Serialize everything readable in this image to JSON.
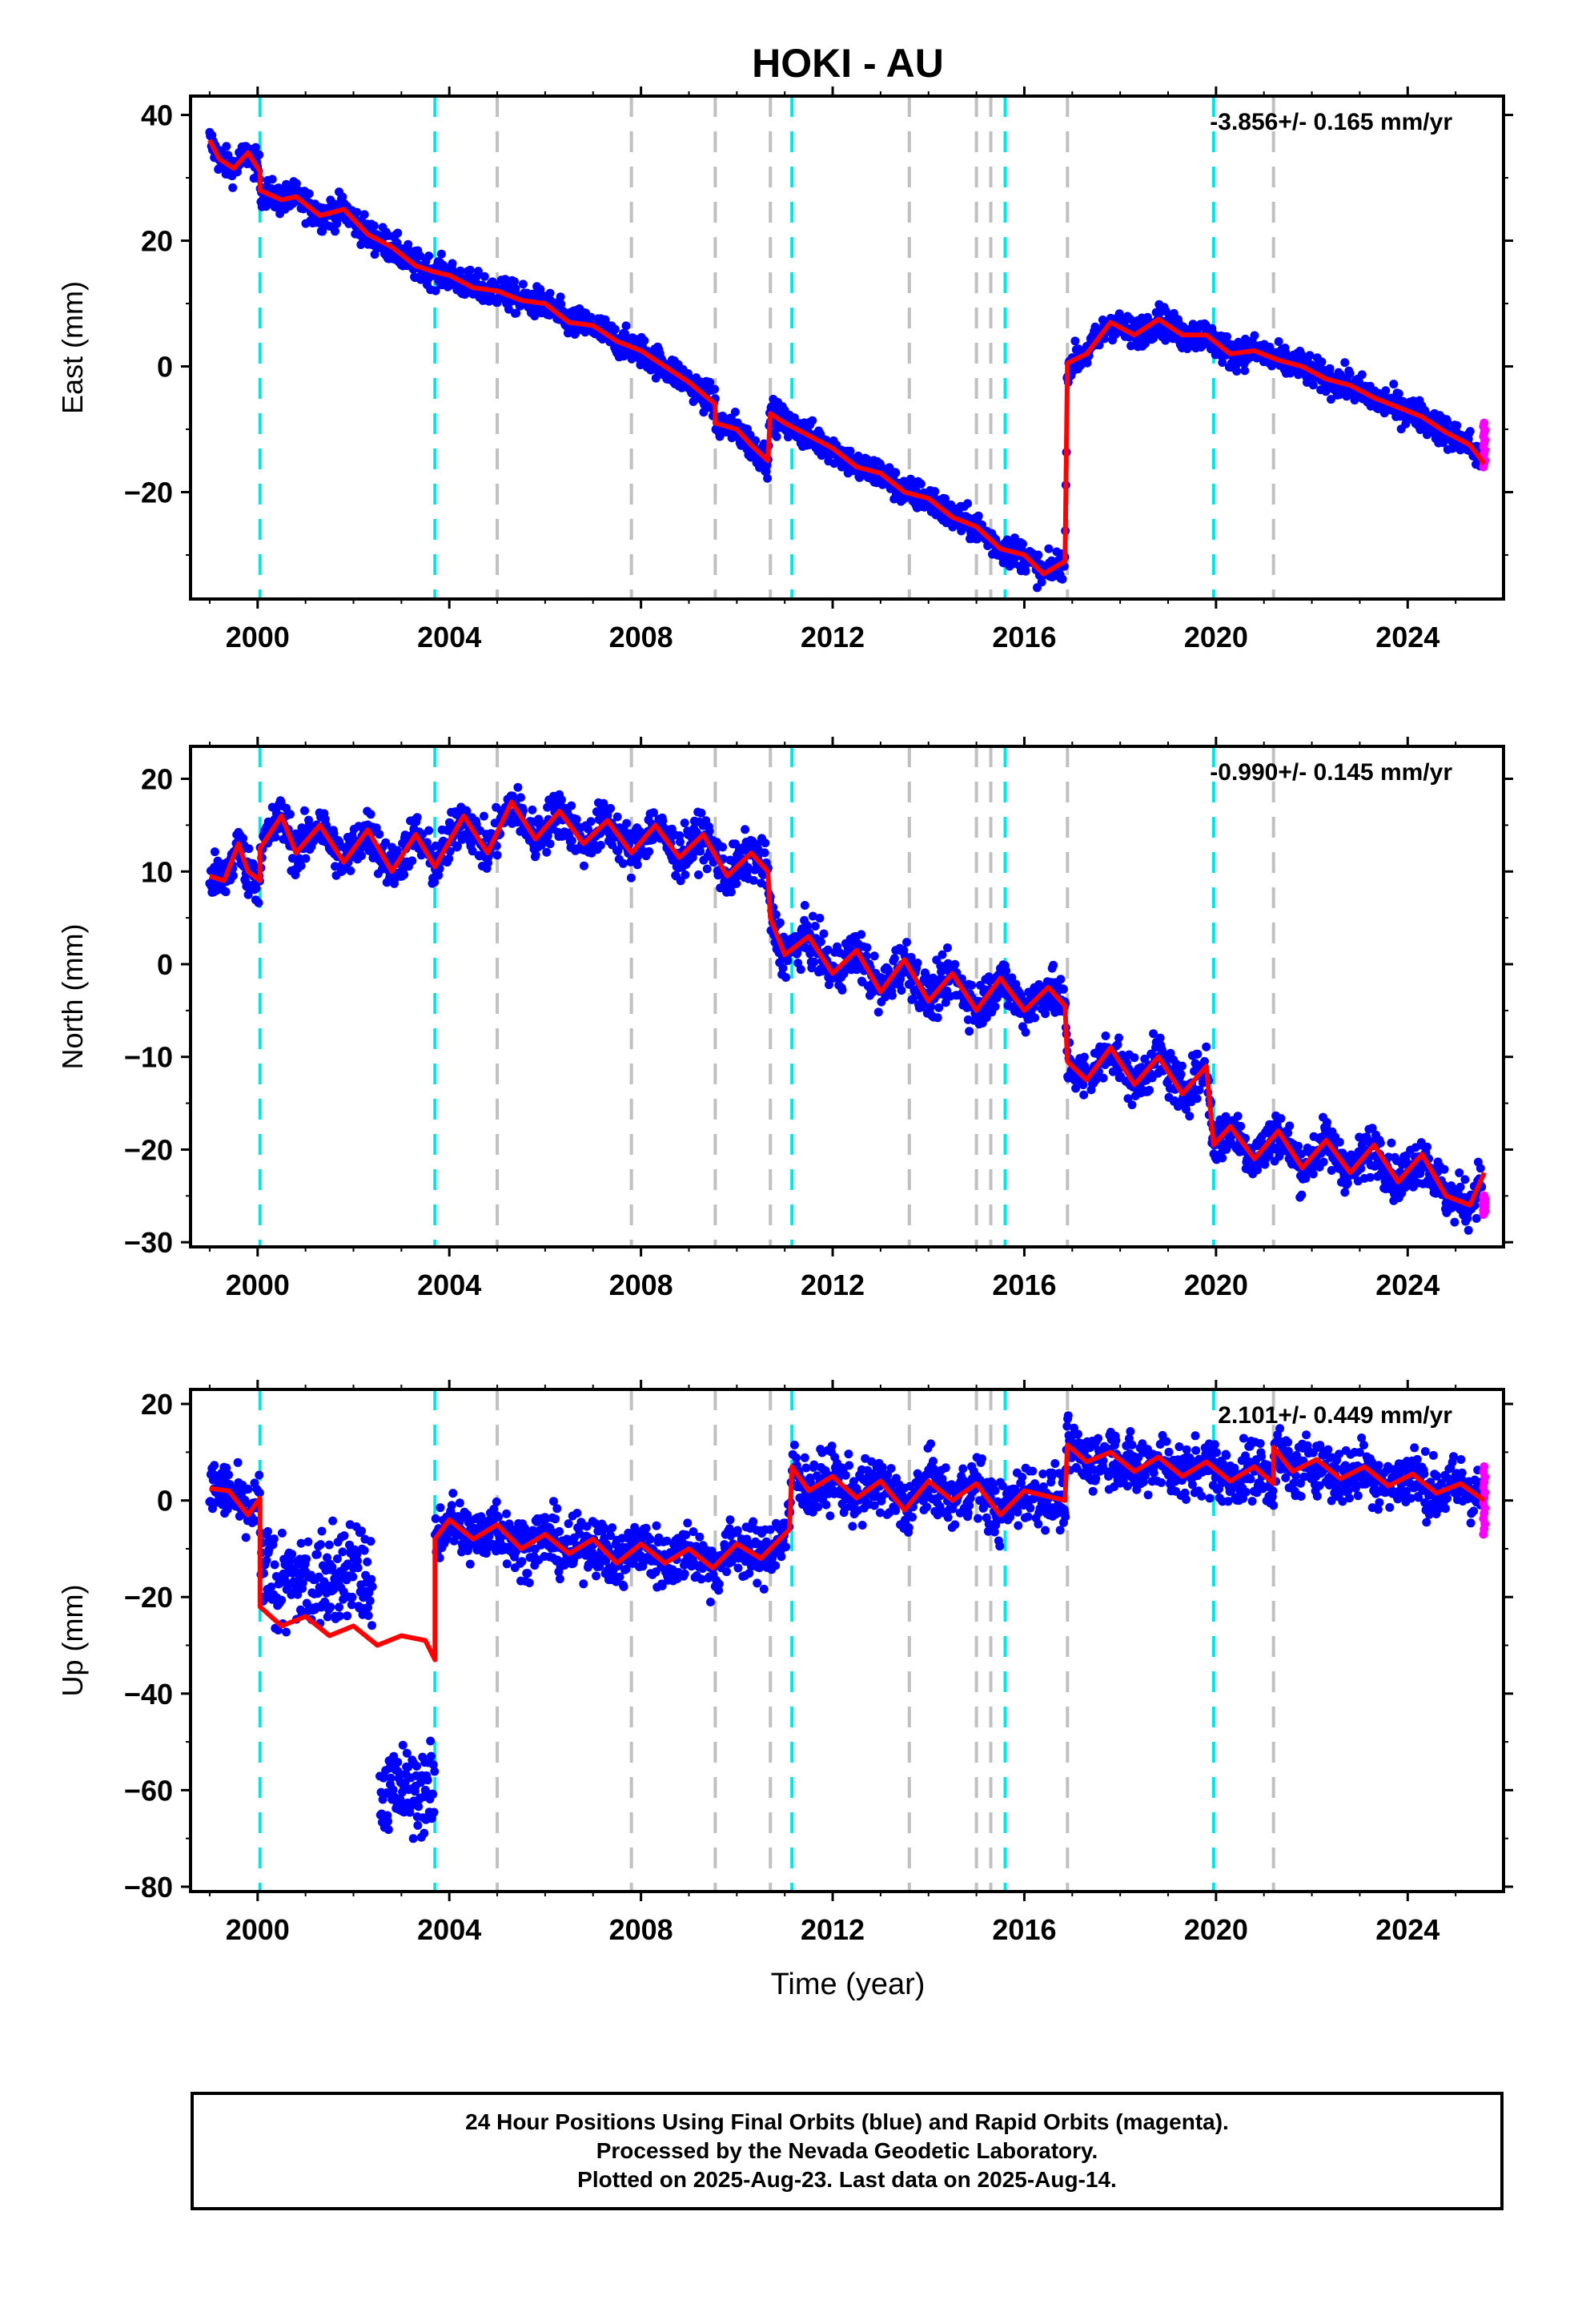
{
  "title": "HOKI - AU",
  "xlabel": "Time (year)",
  "x_ticks": [
    "2000",
    "2004",
    "2008",
    "2012",
    "2016",
    "2020",
    "2024"
  ],
  "colors": {
    "final_orbits": "#0000ff",
    "rapid_orbits": "#ff00ff",
    "model": "#ff0000",
    "cyan_event": "#00e5e5",
    "gray_event": "#c0c0c0"
  },
  "footer": {
    "line1": "24 Hour Positions Using Final Orbits (blue) and Rapid Orbits (magenta).",
    "line2": "Processed by the Nevada Geodetic Laboratory.",
    "line3": "Plotted on 2025-Aug-23. Last data on 2025-Aug-14."
  },
  "chart_data": [
    {
      "type": "scatter",
      "component": "East",
      "ylabel": "East (mm)",
      "velocity_text": "-3.856+/- 0.165 mm/yr",
      "xlim": [
        1998.6,
        2026.0
      ],
      "ylim": [
        -37,
        43
      ],
      "y_ticks": [
        40,
        20,
        0,
        -20
      ],
      "cyan_events": [
        2000.05,
        2003.7,
        2011.15,
        2015.6,
        2019.95
      ],
      "gray_events": [
        2005.0,
        2007.8,
        2009.55,
        2010.7,
        2013.6,
        2015.0,
        2015.3,
        2016.9,
        2021.2
      ],
      "noise_mm": 1.6,
      "model_x": [
        1999.0,
        1999.2,
        1999.5,
        1999.8,
        2000.05,
        2000.05,
        2000.5,
        2000.8,
        2001.3,
        2001.8,
        2002.3,
        2002.8,
        2003.3,
        2003.7,
        2004.0,
        2004.5,
        2005.0,
        2005.5,
        2006.0,
        2006.5,
        2007.0,
        2007.5,
        2008.0,
        2008.5,
        2009.0,
        2009.55,
        2009.55,
        2010.0,
        2010.3,
        2010.65,
        2010.7,
        2011.0,
        2011.5,
        2012.0,
        2012.5,
        2013.0,
        2013.5,
        2014.0,
        2014.5,
        2015.0,
        2015.5,
        2016.0,
        2016.4,
        2016.85,
        2016.9,
        2017.3,
        2017.8,
        2018.3,
        2018.8,
        2019.3,
        2019.8,
        2020.3,
        2020.8,
        2021.3,
        2021.8,
        2022.3,
        2022.8,
        2023.3,
        2023.8,
        2024.3,
        2024.8,
        2025.3,
        2025.6
      ],
      "model_y": [
        36.0,
        33.0,
        31.5,
        34.0,
        31.0,
        28.0,
        26.5,
        27.0,
        24.0,
        25.0,
        21.0,
        19.0,
        16.0,
        15.0,
        14.5,
        12.5,
        12.0,
        10.5,
        10.0,
        7.0,
        6.5,
        4.0,
        2.5,
        0.0,
        -2.5,
        -6.0,
        -9.0,
        -10.0,
        -12.5,
        -15.0,
        -7.5,
        -9.0,
        -11.0,
        -13.0,
        -16.0,
        -17.0,
        -20.0,
        -21.0,
        -24.0,
        -25.5,
        -29.0,
        -30.0,
        -33.0,
        -31.0,
        0.5,
        2.0,
        7.0,
        5.0,
        7.5,
        5.0,
        5.0,
        2.0,
        2.5,
        1.0,
        0.0,
        -2.0,
        -3.0,
        -5.0,
        -6.5,
        -8.0,
        -10.5,
        -12.5,
        -15.5
      ],
      "rapid_y_range": [
        -16,
        -9
      ]
    },
    {
      "type": "scatter",
      "component": "North",
      "ylabel": "North (mm)",
      "velocity_text": "-0.990+/- 0.145 mm/yr",
      "xlim": [
        1998.6,
        2026.0
      ],
      "ylim": [
        -30.5,
        23.5
      ],
      "y_ticks": [
        20,
        10,
        0,
        -10,
        -20,
        -30
      ],
      "cyan_events": [
        2000.05,
        2003.7,
        2011.15,
        2015.6,
        2019.95
      ],
      "gray_events": [
        2005.0,
        2007.8,
        2009.55,
        2010.7,
        2013.6,
        2015.0,
        2015.3,
        2016.9,
        2021.2
      ],
      "noise_mm": 1.7,
      "model_x": [
        1999.0,
        1999.3,
        1999.6,
        1999.8,
        2000.05,
        2000.05,
        2000.5,
        2000.8,
        2001.3,
        2001.8,
        2002.3,
        2002.8,
        2003.3,
        2003.7,
        2004.3,
        2004.8,
        2005.3,
        2005.8,
        2006.3,
        2006.8,
        2007.3,
        2007.8,
        2008.3,
        2008.8,
        2009.3,
        2009.8,
        2010.3,
        2010.65,
        2010.7,
        2011.0,
        2011.5,
        2012.0,
        2012.5,
        2013.0,
        2013.5,
        2014.0,
        2014.5,
        2015.0,
        2015.5,
        2016.0,
        2016.5,
        2016.85,
        2016.9,
        2017.3,
        2017.8,
        2018.3,
        2018.8,
        2019.3,
        2019.8,
        2019.95,
        2020.3,
        2020.8,
        2021.3,
        2021.8,
        2022.3,
        2022.8,
        2023.3,
        2023.8,
        2024.3,
        2024.8,
        2025.3,
        2025.6
      ],
      "model_y": [
        9.5,
        9.0,
        13.0,
        10.0,
        9.0,
        12.5,
        16.0,
        12.0,
        15.0,
        11.0,
        14.5,
        10.0,
        14.0,
        10.5,
        16.0,
        12.0,
        17.5,
        13.5,
        16.5,
        13.0,
        15.5,
        12.0,
        15.0,
        11.5,
        14.0,
        9.5,
        12.0,
        10.0,
        5.0,
        1.0,
        3.0,
        -1.0,
        1.5,
        -3.0,
        0.5,
        -4.0,
        -1.0,
        -5.0,
        -1.5,
        -5.0,
        -2.5,
        -4.5,
        -10.5,
        -12.5,
        -9.0,
        -13.0,
        -10.0,
        -14.0,
        -11.0,
        -19.5,
        -17.5,
        -21.0,
        -18.0,
        -22.0,
        -19.0,
        -22.5,
        -19.5,
        -23.5,
        -20.5,
        -25.0,
        -26.0,
        -22.5
      ],
      "rapid_y_range": [
        -27,
        -25
      ]
    },
    {
      "type": "scatter",
      "component": "Up",
      "ylabel": "Up (mm)",
      "velocity_text": "2.101+/- 0.449 mm/yr",
      "xlim": [
        1998.6,
        2026.0
      ],
      "ylim": [
        -81,
        23
      ],
      "y_ticks": [
        20,
        0,
        -20,
        -40,
        -60,
        -80
      ],
      "cyan_events": [
        2000.05,
        2003.7,
        2011.15,
        2015.6,
        2019.95
      ],
      "gray_events": [
        2005.0,
        2007.8,
        2009.55,
        2010.7,
        2013.6,
        2015.0,
        2015.3,
        2016.9,
        2021.2
      ],
      "noise_mm": 4.0,
      "model_x": [
        1999.0,
        1999.4,
        1999.8,
        2000.05,
        2000.05,
        2000.5,
        2001.0,
        2001.5,
        2002.0,
        2002.5,
        2003.0,
        2003.5,
        2003.7,
        2003.7,
        2004.0,
        2004.5,
        2005.0,
        2005.5,
        2006.0,
        2006.5,
        2007.0,
        2007.5,
        2008.0,
        2008.5,
        2009.0,
        2009.5,
        2010.0,
        2010.5,
        2011.1,
        2011.15,
        2011.5,
        2012.0,
        2012.5,
        2013.0,
        2013.5,
        2014.0,
        2014.5,
        2015.0,
        2015.5,
        2016.0,
        2016.85,
        2016.9,
        2017.3,
        2017.8,
        2018.3,
        2018.8,
        2019.3,
        2019.8,
        2020.3,
        2020.8,
        2021.2,
        2021.2,
        2021.6,
        2022.1,
        2022.6,
        2023.1,
        2023.6,
        2024.1,
        2024.6,
        2025.1,
        2025.6
      ],
      "model_y": [
        2.5,
        2.0,
        -3.0,
        0.5,
        -22.0,
        -26.0,
        -24.0,
        -28.0,
        -26.0,
        -30.0,
        -28.0,
        -29.0,
        -33.0,
        -8.0,
        -4.0,
        -8.0,
        -5.0,
        -10.0,
        -7.0,
        -11.0,
        -8.0,
        -13.0,
        -9.0,
        -13.0,
        -10.0,
        -14.0,
        -9.0,
        -12.0,
        -6.0,
        7.0,
        2.0,
        5.0,
        0.5,
        4.0,
        -2.0,
        4.0,
        0.0,
        3.5,
        -3.0,
        2.0,
        0.0,
        11.5,
        8.0,
        10.0,
        6.0,
        9.0,
        5.0,
        8.0,
        4.0,
        7.0,
        3.5,
        11.0,
        6.0,
        8.5,
        4.5,
        7.0,
        3.0,
        5.5,
        1.5,
        3.5,
        0.0
      ],
      "rapid_y_range": [
        -7,
        7
      ]
    }
  ]
}
